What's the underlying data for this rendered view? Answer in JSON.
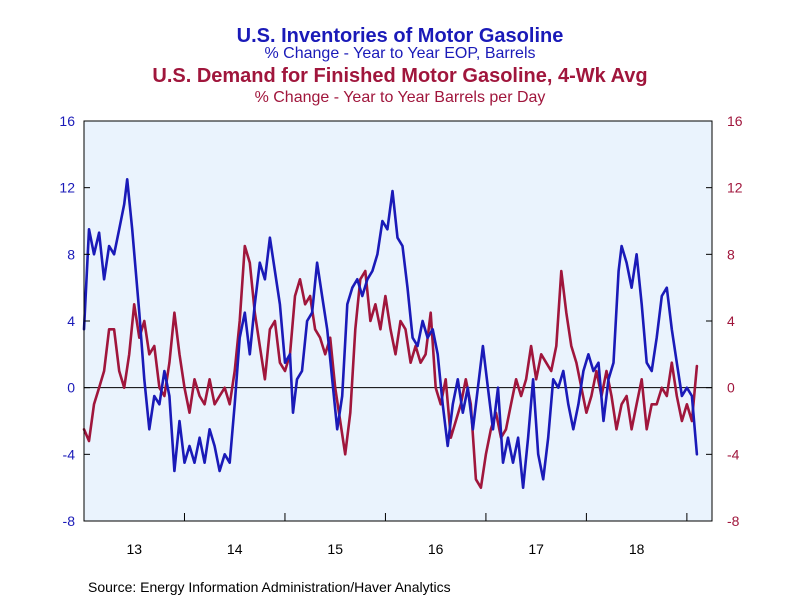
{
  "chart_data": {
    "type": "line",
    "titles": [
      {
        "text": "U.S. Inventories of Motor Gasoline",
        "color": "#1a1ab8",
        "role": "title"
      },
      {
        "text": "% Change - Year to Year    EOP,  Barrels",
        "color": "#1a1ab8",
        "role": "subtitle"
      },
      {
        "text": "U.S. Demand for Finished Motor Gasoline, 4-Wk Avg",
        "color": "#a0163c",
        "role": "title"
      },
      {
        "text": "% Change - Year to Year     Barrels per Day",
        "color": "#a0163c",
        "role": "subtitle"
      }
    ],
    "source": "Source:  Energy Information Administration/Haver Analytics",
    "x_range": [
      2013.0,
      2019.25
    ],
    "x_tick_labels": [
      {
        "label": "13",
        "center": 2013.5
      },
      {
        "label": "14",
        "center": 2014.5
      },
      {
        "label": "15",
        "center": 2015.5
      },
      {
        "label": "16",
        "center": 2016.5
      },
      {
        "label": "17",
        "center": 2017.5
      },
      {
        "label": "18",
        "center": 2018.5
      }
    ],
    "y_left": {
      "min": -8,
      "max": 16,
      "ticks": [
        16,
        12,
        8,
        4,
        0,
        -4,
        -8
      ],
      "color": "#1a1ab8"
    },
    "y_right": {
      "min": -8,
      "max": 16,
      "ticks": [
        16,
        12,
        8,
        4,
        0,
        -4,
        -8
      ],
      "color": "#a0163c"
    },
    "zero_line": true,
    "grid": false,
    "series": [
      {
        "name": "U.S. Inventories of Motor Gasoline",
        "axis": "left",
        "color": "#1a1ab8",
        "points": [
          [
            2013.0,
            3.5
          ],
          [
            2013.05,
            9.5
          ],
          [
            2013.1,
            8.0
          ],
          [
            2013.15,
            9.3
          ],
          [
            2013.2,
            6.5
          ],
          [
            2013.25,
            8.5
          ],
          [
            2013.3,
            8.0
          ],
          [
            2013.35,
            9.5
          ],
          [
            2013.4,
            11.0
          ],
          [
            2013.43,
            12.5
          ],
          [
            2013.48,
            9.5
          ],
          [
            2013.55,
            4.5
          ],
          [
            2013.6,
            0.5
          ],
          [
            2013.65,
            -2.5
          ],
          [
            2013.7,
            -0.5
          ],
          [
            2013.75,
            -1.0
          ],
          [
            2013.8,
            1.0
          ],
          [
            2013.85,
            -0.5
          ],
          [
            2013.9,
            -5.0
          ],
          [
            2013.95,
            -2.0
          ],
          [
            2014.0,
            -4.5
          ],
          [
            2014.05,
            -3.5
          ],
          [
            2014.1,
            -4.5
          ],
          [
            2014.15,
            -3.0
          ],
          [
            2014.2,
            -4.5
          ],
          [
            2014.25,
            -2.5
          ],
          [
            2014.3,
            -3.5
          ],
          [
            2014.35,
            -5.0
          ],
          [
            2014.4,
            -4.0
          ],
          [
            2014.45,
            -4.5
          ],
          [
            2014.5,
            -1.0
          ],
          [
            2014.55,
            3.0
          ],
          [
            2014.6,
            4.5
          ],
          [
            2014.65,
            2.0
          ],
          [
            2014.7,
            5.0
          ],
          [
            2014.75,
            7.5
          ],
          [
            2014.8,
            6.5
          ],
          [
            2014.85,
            9.0
          ],
          [
            2014.9,
            7.0
          ],
          [
            2014.95,
            5.0
          ],
          [
            2015.0,
            1.5
          ],
          [
            2015.05,
            2.0
          ],
          [
            2015.08,
            -1.5
          ],
          [
            2015.12,
            0.5
          ],
          [
            2015.17,
            1.0
          ],
          [
            2015.22,
            4.0
          ],
          [
            2015.27,
            4.5
          ],
          [
            2015.32,
            7.5
          ],
          [
            2015.37,
            5.5
          ],
          [
            2015.42,
            3.5
          ],
          [
            2015.47,
            0.5
          ],
          [
            2015.52,
            -2.5
          ],
          [
            2015.57,
            -0.5
          ],
          [
            2015.62,
            5.0
          ],
          [
            2015.67,
            6.0
          ],
          [
            2015.72,
            6.5
          ],
          [
            2015.77,
            5.5
          ],
          [
            2015.82,
            6.5
          ],
          [
            2015.87,
            7.0
          ],
          [
            2015.92,
            8.0
          ],
          [
            2015.97,
            10.0
          ],
          [
            2016.02,
            9.5
          ],
          [
            2016.07,
            11.8
          ],
          [
            2016.12,
            9.0
          ],
          [
            2016.17,
            8.5
          ],
          [
            2016.22,
            6.0
          ],
          [
            2016.27,
            3.0
          ],
          [
            2016.32,
            2.5
          ],
          [
            2016.37,
            4.0
          ],
          [
            2016.42,
            3.0
          ],
          [
            2016.47,
            3.5
          ],
          [
            2016.52,
            2.0
          ],
          [
            2016.57,
            -1.0
          ],
          [
            2016.62,
            -3.5
          ],
          [
            2016.67,
            -1.0
          ],
          [
            2016.72,
            0.5
          ],
          [
            2016.77,
            -1.5
          ],
          [
            2016.82,
            0.0
          ],
          [
            2016.87,
            -2.5
          ],
          [
            2016.92,
            0.0
          ],
          [
            2016.97,
            2.5
          ],
          [
            2017.02,
            0.0
          ],
          [
            2017.07,
            -2.5
          ],
          [
            2017.12,
            0.0
          ],
          [
            2017.17,
            -4.5
          ],
          [
            2017.22,
            -3.0
          ],
          [
            2017.27,
            -4.5
          ],
          [
            2017.32,
            -3.0
          ],
          [
            2017.37,
            -6.0
          ],
          [
            2017.42,
            -3.0
          ],
          [
            2017.47,
            0.5
          ],
          [
            2017.52,
            -4.0
          ],
          [
            2017.57,
            -5.5
          ],
          [
            2017.62,
            -3.0
          ],
          [
            2017.67,
            0.5
          ],
          [
            2017.72,
            0.0
          ],
          [
            2017.77,
            1.0
          ],
          [
            2017.82,
            -1.0
          ],
          [
            2017.87,
            -2.5
          ],
          [
            2017.92,
            -1.0
          ],
          [
            2017.97,
            1.0
          ],
          [
            2018.02,
            2.0
          ],
          [
            2018.07,
            1.0
          ],
          [
            2018.12,
            1.5
          ],
          [
            2018.17,
            -2.0
          ],
          [
            2018.22,
            0.5
          ],
          [
            2018.27,
            1.5
          ],
          [
            2018.32,
            7.0
          ],
          [
            2018.35,
            8.5
          ],
          [
            2018.4,
            7.5
          ],
          [
            2018.45,
            6.0
          ],
          [
            2018.5,
            8.0
          ],
          [
            2018.55,
            5.0
          ],
          [
            2018.6,
            1.5
          ],
          [
            2018.65,
            1.0
          ],
          [
            2018.7,
            3.0
          ],
          [
            2018.75,
            5.5
          ],
          [
            2018.8,
            6.0
          ],
          [
            2018.85,
            3.5
          ],
          [
            2018.9,
            1.5
          ],
          [
            2018.95,
            -0.5
          ],
          [
            2019.0,
            0.0
          ],
          [
            2019.05,
            -0.5
          ],
          [
            2019.1,
            -4.0
          ]
        ]
      },
      {
        "name": "U.S. Demand for Finished Motor Gasoline, 4-Wk Avg",
        "axis": "right",
        "color": "#a0163c",
        "points": [
          [
            2013.0,
            -2.5
          ],
          [
            2013.05,
            -3.2
          ],
          [
            2013.1,
            -1.0
          ],
          [
            2013.15,
            0.0
          ],
          [
            2013.2,
            1.0
          ],
          [
            2013.25,
            3.5
          ],
          [
            2013.3,
            3.5
          ],
          [
            2013.35,
            1.0
          ],
          [
            2013.4,
            0.0
          ],
          [
            2013.45,
            2.0
          ],
          [
            2013.5,
            5.0
          ],
          [
            2013.55,
            3.0
          ],
          [
            2013.6,
            4.0
          ],
          [
            2013.65,
            2.0
          ],
          [
            2013.7,
            2.5
          ],
          [
            2013.75,
            0.0
          ],
          [
            2013.8,
            -0.5
          ],
          [
            2013.85,
            1.5
          ],
          [
            2013.9,
            4.5
          ],
          [
            2013.95,
            2.0
          ],
          [
            2014.0,
            0.0
          ],
          [
            2014.05,
            -1.5
          ],
          [
            2014.1,
            0.5
          ],
          [
            2014.15,
            -0.5
          ],
          [
            2014.2,
            -1.0
          ],
          [
            2014.25,
            0.5
          ],
          [
            2014.3,
            -1.0
          ],
          [
            2014.35,
            -0.5
          ],
          [
            2014.4,
            0.0
          ],
          [
            2014.45,
            -1.0
          ],
          [
            2014.5,
            1.0
          ],
          [
            2014.55,
            4.0
          ],
          [
            2014.6,
            8.5
          ],
          [
            2014.65,
            7.5
          ],
          [
            2014.7,
            4.5
          ],
          [
            2014.75,
            2.5
          ],
          [
            2014.8,
            0.5
          ],
          [
            2014.85,
            3.5
          ],
          [
            2014.9,
            4.0
          ],
          [
            2014.95,
            1.5
          ],
          [
            2015.0,
            1.0
          ],
          [
            2015.05,
            2.0
          ],
          [
            2015.1,
            5.5
          ],
          [
            2015.15,
            6.5
          ],
          [
            2015.2,
            5.0
          ],
          [
            2015.25,
            5.5
          ],
          [
            2015.3,
            3.5
          ],
          [
            2015.35,
            3.0
          ],
          [
            2015.4,
            2.0
          ],
          [
            2015.45,
            3.0
          ],
          [
            2015.5,
            0.0
          ],
          [
            2015.55,
            -2.0
          ],
          [
            2015.6,
            -4.0
          ],
          [
            2015.65,
            -1.5
          ],
          [
            2015.7,
            3.5
          ],
          [
            2015.75,
            6.5
          ],
          [
            2015.8,
            7.0
          ],
          [
            2015.85,
            4.0
          ],
          [
            2015.9,
            5.0
          ],
          [
            2015.95,
            3.5
          ],
          [
            2016.0,
            5.5
          ],
          [
            2016.05,
            3.5
          ],
          [
            2016.1,
            2.0
          ],
          [
            2016.15,
            4.0
          ],
          [
            2016.2,
            3.5
          ],
          [
            2016.25,
            1.5
          ],
          [
            2016.3,
            2.5
          ],
          [
            2016.35,
            1.5
          ],
          [
            2016.4,
            2.0
          ],
          [
            2016.45,
            4.5
          ],
          [
            2016.5,
            0.0
          ],
          [
            2016.55,
            -1.0
          ],
          [
            2016.6,
            0.5
          ],
          [
            2016.65,
            -3.0
          ],
          [
            2016.7,
            -2.0
          ],
          [
            2016.75,
            -1.0
          ],
          [
            2016.8,
            0.5
          ],
          [
            2016.85,
            -1.0
          ],
          [
            2016.9,
            -5.5
          ],
          [
            2016.95,
            -6.0
          ],
          [
            2017.0,
            -4.0
          ],
          [
            2017.05,
            -2.5
          ],
          [
            2017.1,
            -1.5
          ],
          [
            2017.15,
            -3.0
          ],
          [
            2017.2,
            -2.5
          ],
          [
            2017.25,
            -1.0
          ],
          [
            2017.3,
            0.5
          ],
          [
            2017.35,
            -0.5
          ],
          [
            2017.4,
            0.5
          ],
          [
            2017.45,
            2.5
          ],
          [
            2017.5,
            0.5
          ],
          [
            2017.55,
            2.0
          ],
          [
            2017.6,
            1.5
          ],
          [
            2017.65,
            1.0
          ],
          [
            2017.7,
            2.5
          ],
          [
            2017.75,
            7.0
          ],
          [
            2017.8,
            4.5
          ],
          [
            2017.85,
            2.5
          ],
          [
            2017.9,
            1.5
          ],
          [
            2017.95,
            0.0
          ],
          [
            2018.0,
            -1.5
          ],
          [
            2018.05,
            -0.5
          ],
          [
            2018.1,
            1.0
          ],
          [
            2018.15,
            -0.5
          ],
          [
            2018.2,
            1.0
          ],
          [
            2018.25,
            -0.5
          ],
          [
            2018.3,
            -2.5
          ],
          [
            2018.35,
            -1.0
          ],
          [
            2018.4,
            -0.5
          ],
          [
            2018.45,
            -2.5
          ],
          [
            2018.5,
            -1.0
          ],
          [
            2018.55,
            0.5
          ],
          [
            2018.6,
            -2.5
          ],
          [
            2018.65,
            -1.0
          ],
          [
            2018.7,
            -1.0
          ],
          [
            2018.75,
            0.0
          ],
          [
            2018.8,
            -0.5
          ],
          [
            2018.85,
            1.5
          ],
          [
            2018.9,
            -0.5
          ],
          [
            2018.95,
            -2.0
          ],
          [
            2019.0,
            -1.0
          ],
          [
            2019.05,
            -2.0
          ],
          [
            2019.1,
            1.3
          ]
        ]
      }
    ]
  }
}
